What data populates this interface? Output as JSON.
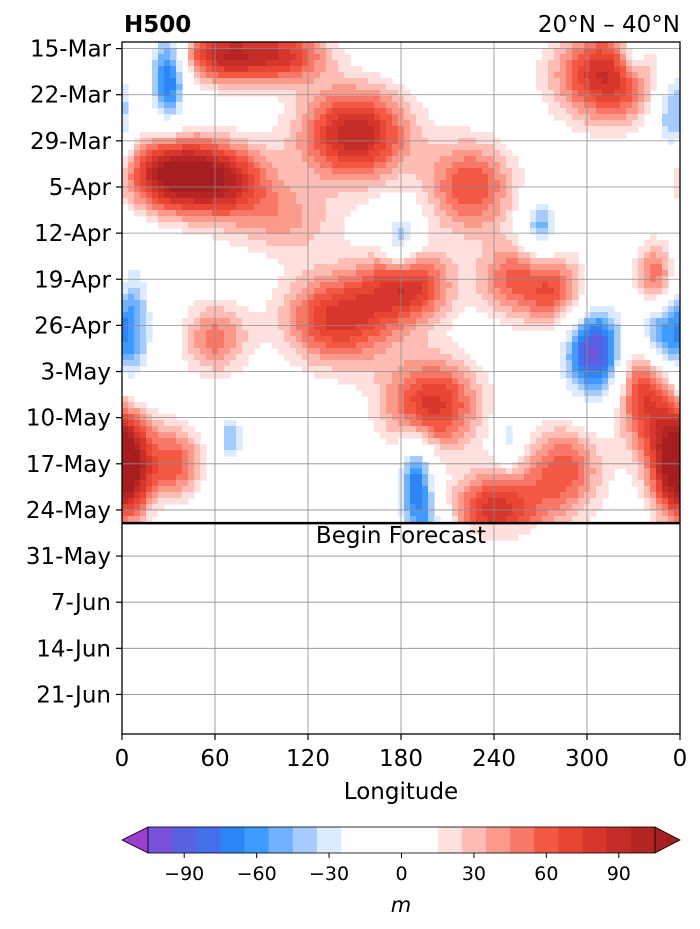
{
  "chart_data": {
    "type": "heatmap",
    "title": "H500",
    "region": "20°N – 40°N",
    "xlabel": "Longitude",
    "colorbar_label": "m",
    "x_ticks": [
      "0",
      "60",
      "120",
      "180",
      "240",
      "300",
      "0"
    ],
    "x_tick_values": [
      0,
      60,
      120,
      180,
      240,
      300,
      360
    ],
    "xlim": [
      0,
      360
    ],
    "y_ticks": [
      "15-Mar",
      "22-Mar",
      "29-Mar",
      "5-Apr",
      "12-Apr",
      "19-Apr",
      "26-Apr",
      "3-May",
      "10-May",
      "17-May",
      "24-May",
      "31-May",
      "7-Jun",
      "14-Jun",
      "21-Jun"
    ],
    "y_start": "2020-03-14",
    "y_end": "2020-06-27",
    "forecast_start_date": "2020-05-26",
    "forecast_label": "Begin Forecast",
    "colorbar_ticks": [
      "−90",
      "−60",
      "−30",
      "0",
      "30",
      "60",
      "90"
    ],
    "colorbar_tick_values": [
      -90,
      -60,
      -30,
      0,
      30,
      60,
      90
    ],
    "levels": [
      -105,
      -95,
      -85,
      -75,
      -65,
      -55,
      -45,
      -35,
      -25,
      -15,
      15,
      25,
      35,
      45,
      55,
      65,
      75,
      85,
      95,
      105
    ],
    "colors": [
      "#9a3fd0",
      "#7950d8",
      "#5a60e2",
      "#4470ec",
      "#2e86f6",
      "#3f9bff",
      "#70b2ff",
      "#a6ccff",
      "#dcebff",
      "#ffffff",
      "#ffffff",
      "#fee1de",
      "#fdbdb4",
      "#fb9a8b",
      "#f87766",
      "#f35845",
      "#e84535",
      "#d6362c",
      "#c42c27",
      "#b42523",
      "#a61e1f"
    ],
    "anomaly_centers": [
      {
        "lon": 30,
        "date": "2020-04-03",
        "value": 95,
        "sd_lon": 22,
        "sd_days": 4
      },
      {
        "lon": 65,
        "date": "2020-03-16",
        "value": 85,
        "sd_lon": 20,
        "sd_days": 3
      },
      {
        "lon": 65,
        "date": "2020-04-04",
        "value": 80,
        "sd_lon": 22,
        "sd_days": 4
      },
      {
        "lon": 150,
        "date": "2020-03-28",
        "value": 95,
        "sd_lon": 25,
        "sd_days": 5
      },
      {
        "lon": 105,
        "date": "2020-03-16",
        "value": 70,
        "sd_lon": 20,
        "sd_days": 3
      },
      {
        "lon": 140,
        "date": "2020-04-25",
        "value": 80,
        "sd_lon": 25,
        "sd_days": 5
      },
      {
        "lon": 185,
        "date": "2020-04-20",
        "value": 75,
        "sd_lon": 20,
        "sd_days": 4
      },
      {
        "lon": 200,
        "date": "2020-05-08",
        "value": 80,
        "sd_lon": 22,
        "sd_days": 5
      },
      {
        "lon": 225,
        "date": "2020-04-05",
        "value": 65,
        "sd_lon": 20,
        "sd_days": 5
      },
      {
        "lon": 240,
        "date": "2020-05-24",
        "value": 80,
        "sd_lon": 20,
        "sd_days": 4
      },
      {
        "lon": 285,
        "date": "2020-05-18",
        "value": 60,
        "sd_lon": 18,
        "sd_days": 5
      },
      {
        "lon": 315,
        "date": "2020-03-19",
        "value": 90,
        "sd_lon": 25,
        "sd_days": 5
      },
      {
        "lon": 335,
        "date": "2020-05-05",
        "value": 70,
        "sd_lon": 12,
        "sd_days": 6
      },
      {
        "lon": 358,
        "date": "2020-05-14",
        "value": 85,
        "sd_lon": 14,
        "sd_days": 6
      },
      {
        "lon": 2,
        "date": "2020-05-19",
        "value": 80,
        "sd_lon": 12,
        "sd_days": 5
      },
      {
        "lon": 35,
        "date": "2020-05-17",
        "value": 60,
        "sd_lon": 12,
        "sd_days": 4
      },
      {
        "lon": 280,
        "date": "2020-04-21",
        "value": 60,
        "sd_lon": 15,
        "sd_days": 4
      },
      {
        "lon": 250,
        "date": "2020-04-19",
        "value": 50,
        "sd_lon": 15,
        "sd_days": 4
      },
      {
        "lon": 345,
        "date": "2020-04-19",
        "value": 60,
        "sd_lon": 10,
        "sd_days": 4
      },
      {
        "lon": 60,
        "date": "2020-04-28",
        "value": 50,
        "sd_lon": 15,
        "sd_days": 4
      },
      {
        "lon": 105,
        "date": "2020-04-10",
        "value": 35,
        "sd_lon": 25,
        "sd_days": 4
      },
      {
        "lon": 30,
        "date": "2020-03-19",
        "value": -85,
        "sd_lon": 8,
        "sd_days": 5
      },
      {
        "lon": 5,
        "date": "2020-04-27",
        "value": -60,
        "sd_lon": 10,
        "sd_days": 8
      },
      {
        "lon": 305,
        "date": "2020-04-30",
        "value": -100,
        "sd_lon": 14,
        "sd_days": 5
      },
      {
        "lon": 345,
        "date": "2020-04-27",
        "value": -70,
        "sd_lon": 10,
        "sd_days": 4
      },
      {
        "lon": 355,
        "date": "2020-03-24",
        "value": -60,
        "sd_lon": 10,
        "sd_days": 6
      },
      {
        "lon": 190,
        "date": "2020-05-20",
        "value": -75,
        "sd_lon": 8,
        "sd_days": 5
      },
      {
        "lon": 180,
        "date": "2020-04-13",
        "value": -55,
        "sd_lon": 8,
        "sd_days": 3
      },
      {
        "lon": 270,
        "date": "2020-04-11",
        "value": -55,
        "sd_lon": 8,
        "sd_days": 3
      },
      {
        "lon": 330,
        "date": "2020-03-16",
        "value": -50,
        "sd_lon": 8,
        "sd_days": 3
      },
      {
        "lon": 200,
        "date": "2020-05-29",
        "value": -45,
        "sd_lon": 10,
        "sd_days": 4
      },
      {
        "lon": 195,
        "date": "2020-06-12",
        "value": -15,
        "sd_lon": 25,
        "sd_days": 10
      },
      {
        "lon": 30,
        "date": "2020-06-03",
        "value": -15,
        "sd_lon": 20,
        "sd_days": 8
      },
      {
        "lon": 270,
        "date": "2020-06-06",
        "value": 12,
        "sd_lon": 15,
        "sd_days": 10
      },
      {
        "lon": 360,
        "date": "2020-06-14",
        "value": 14,
        "sd_lon": 10,
        "sd_days": 10
      },
      {
        "lon": 160,
        "date": "2020-06-14",
        "value": 14,
        "sd_lon": 6,
        "sd_days": 7
      },
      {
        "lon": 70,
        "date": "2020-05-13",
        "value": -45,
        "sd_lon": 6,
        "sd_days": 3
      },
      {
        "lon": 250,
        "date": "2020-05-13",
        "value": -40,
        "sd_lon": 6,
        "sd_days": 3
      }
    ]
  }
}
